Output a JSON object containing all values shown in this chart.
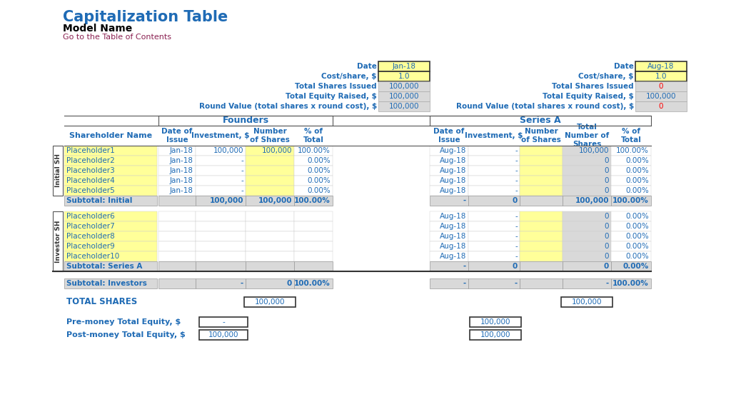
{
  "title": "Capitalization Table",
  "subtitle": "Model Name",
  "link_text": "Go to the Table of Contents",
  "title_color": "#1F6BB5",
  "subtitle_color": "#000000",
  "link_color": "#8B2252",
  "blue": "#1F6BB5",
  "yellow": "#FFFF99",
  "gray": "#D9D9D9",
  "white": "#FFFFFF",
  "dark_border": "#555555",
  "light_border": "#AAAAAA",
  "red": "#FF0000",
  "info_labels": [
    "Date",
    "Cost/share, $",
    "Total Shares Issued",
    "Total Equity Raised, $",
    "Round Value (total shares x round cost), $"
  ],
  "founders_info": [
    "Jan-18",
    "1.0",
    "100,000",
    "100,000",
    "100,000"
  ],
  "series_info": [
    "Aug-18",
    "1.0",
    "0",
    "100,000",
    "0"
  ],
  "initial_names": [
    "Placeholder1",
    "Placeholder2",
    "Placeholder3",
    "Placeholder4",
    "Placeholder5"
  ],
  "investor_names": [
    "Placeholder6",
    "Placeholder7",
    "Placeholder8",
    "Placeholder9",
    "Placeholder10"
  ],
  "founders_rows": [
    [
      "Jan-18",
      "100,000",
      "100,000",
      "100.00%"
    ],
    [
      "Jan-18",
      "-",
      "",
      "0.00%"
    ],
    [
      "Jan-18",
      "-",
      "",
      "0.00%"
    ],
    [
      "Jan-18",
      "-",
      "",
      "0.00%"
    ],
    [
      "Jan-18",
      "-",
      "",
      "0.00%"
    ]
  ],
  "series_initial_rows": [
    [
      "Aug-18",
      "-",
      "",
      "100,000",
      "100.00%"
    ],
    [
      "Aug-18",
      "-",
      "",
      "0",
      "0.00%"
    ],
    [
      "Aug-18",
      "-",
      "",
      "0",
      "0.00%"
    ],
    [
      "Aug-18",
      "-",
      "",
      "0",
      "0.00%"
    ],
    [
      "Aug-18",
      "-",
      "",
      "0",
      "0.00%"
    ]
  ],
  "series_investor_rows": [
    [
      "Aug-18",
      "-",
      "",
      "0",
      "0.00%"
    ],
    [
      "Aug-18",
      "-",
      "",
      "0",
      "0.00%"
    ],
    [
      "Aug-18",
      "-",
      "",
      "0",
      "0.00%"
    ],
    [
      "Aug-18",
      "-",
      "",
      "0",
      "0.00%"
    ],
    [
      "Aug-18",
      "-",
      "",
      "0",
      "0.00%"
    ]
  ],
  "subtotal_initial_f": [
    "",
    "100,000",
    "100,000",
    "100.00%"
  ],
  "subtotal_initial_s": [
    "-",
    "0",
    "",
    "100,000",
    "100.00%"
  ],
  "subtotal_series_s": [
    "-",
    "0",
    "",
    "0",
    "0.00%"
  ],
  "subtotal_investors_f": [
    "",
    "-",
    "0",
    "100.00%"
  ],
  "subtotal_investors_s": [
    "-",
    "-",
    "",
    "-",
    "100.00%"
  ],
  "total_shares_f": "100,000",
  "total_shares_s": "100,000",
  "pre_money_f": "-",
  "post_money_f": "100,000",
  "pre_money_s": "100,000",
  "post_money_s": "100,000"
}
